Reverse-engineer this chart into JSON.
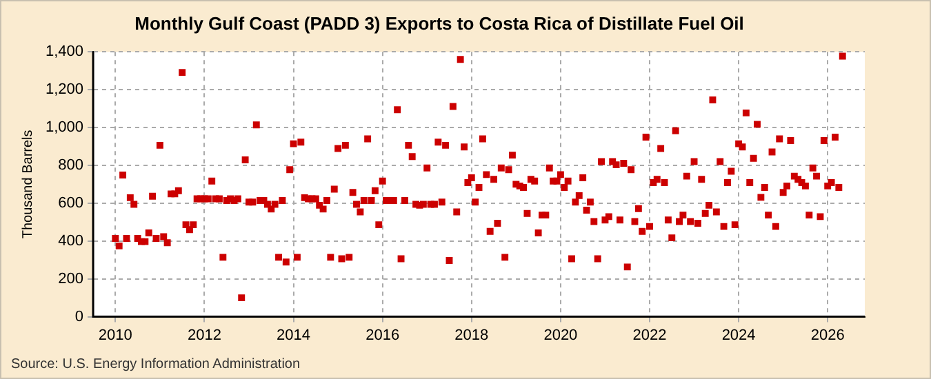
{
  "chart_data": {
    "type": "scatter",
    "title": "Monthly Gulf Coast (PADD 3) Exports to Costa Rica of Distillate Fuel Oil",
    "ylabel": "Thousand Barrels",
    "annotations": [
      "Source: U.S. Energy Information Administration"
    ],
    "x": [
      "2010-01",
      "2010-02",
      "2010-03",
      "2010-04",
      "2010-05",
      "2010-06",
      "2010-07",
      "2010-08",
      "2010-09",
      "2010-10",
      "2010-11",
      "2010-12",
      "2011-01",
      "2011-02",
      "2011-03",
      "2011-04",
      "2011-05",
      "2011-06",
      "2011-07",
      "2011-08",
      "2011-09",
      "2011-10",
      "2011-11",
      "2011-12",
      "2012-01",
      "2012-02",
      "2012-03",
      "2012-04",
      "2012-05",
      "2012-06",
      "2012-07",
      "2012-08",
      "2012-09",
      "2012-10",
      "2012-11",
      "2012-12",
      "2013-01",
      "2013-02",
      "2013-03",
      "2013-04",
      "2013-05",
      "2013-06",
      "2013-07",
      "2013-08",
      "2013-09",
      "2013-10",
      "2013-11",
      "2013-12",
      "2014-01",
      "2014-02",
      "2014-03",
      "2014-04",
      "2014-05",
      "2014-06",
      "2014-07",
      "2014-08",
      "2014-09",
      "2014-10",
      "2014-11",
      "2014-12",
      "2015-01",
      "2015-02",
      "2015-03",
      "2015-04",
      "2015-05",
      "2015-06",
      "2015-07",
      "2015-08",
      "2015-09",
      "2015-10",
      "2015-11",
      "2015-12",
      "2016-01",
      "2016-02",
      "2016-03",
      "2016-04",
      "2016-05",
      "2016-06",
      "2016-07",
      "2016-08",
      "2016-09",
      "2016-10",
      "2016-11",
      "2016-12",
      "2017-01",
      "2017-02",
      "2017-03",
      "2017-04",
      "2017-05",
      "2017-06",
      "2017-07",
      "2017-08",
      "2017-09",
      "2017-10",
      "2017-11",
      "2017-12",
      "2018-01",
      "2018-02",
      "2018-03",
      "2018-04",
      "2018-05",
      "2018-06",
      "2018-07",
      "2018-08",
      "2018-09",
      "2018-10",
      "2018-11",
      "2018-12",
      "2019-01",
      "2019-02",
      "2019-03",
      "2019-04",
      "2019-05",
      "2019-06",
      "2019-07",
      "2019-08",
      "2019-09",
      "2019-10",
      "2019-11",
      "2019-12",
      "2020-01",
      "2020-02",
      "2020-03",
      "2020-04",
      "2020-05",
      "2020-06",
      "2020-07",
      "2020-08",
      "2020-09",
      "2020-10",
      "2020-11",
      "2020-12",
      "2021-01",
      "2021-02",
      "2021-03",
      "2021-04",
      "2021-05",
      "2021-06",
      "2021-07",
      "2021-08",
      "2021-09",
      "2021-10",
      "2021-11",
      "2021-12",
      "2022-01",
      "2022-02",
      "2022-03",
      "2022-04",
      "2022-05",
      "2022-06",
      "2022-07",
      "2022-08",
      "2022-09",
      "2022-10",
      "2022-11",
      "2022-12",
      "2023-01",
      "2023-02",
      "2023-03",
      "2023-04",
      "2023-05",
      "2023-06",
      "2023-07",
      "2023-08",
      "2023-09",
      "2023-10",
      "2023-11",
      "2023-12",
      "2024-01",
      "2024-02",
      "2024-03",
      "2024-04",
      "2024-05",
      "2024-06",
      "2024-07",
      "2024-08",
      "2024-09",
      "2024-10",
      "2024-11",
      "2024-12",
      "2025-01",
      "2025-02",
      "2025-03",
      "2025-04",
      "2025-05",
      "2025-06",
      "2025-07",
      "2025-08",
      "2025-09",
      "2025-10",
      "2025-11",
      "2025-12",
      "2026-01",
      "2026-02",
      "2026-03",
      "2026-04",
      "2026-05"
    ],
    "series": [
      {
        "color": "#cc0000",
        "values": [
          414,
          374,
          749,
          414,
          629,
          594,
          414,
          397,
          397,
          443,
          637,
          414,
          906,
          423,
          391,
          649,
          649,
          666,
          1291,
          486,
          460,
          486,
          623,
          623,
          623,
          623,
          717,
          623,
          623,
          314,
          614,
          623,
          614,
          623,
          100,
          829,
          606,
          606,
          1014,
          614,
          614,
          594,
          569,
          594,
          314,
          614,
          289,
          777,
          914,
          314,
          923,
          629,
          623,
          623,
          623,
          589,
          569,
          614,
          314,
          674,
          889,
          306,
          906,
          314,
          657,
          594,
          554,
          614,
          940,
          614,
          666,
          486,
          717,
          614,
          614,
          614,
          1094,
          306,
          614,
          906,
          846,
          594,
          589,
          594,
          786,
          594,
          594,
          923,
          606,
          906,
          297,
          1111,
          554,
          1360,
          897,
          709,
          734,
          606,
          683,
          940,
          751,
          451,
          726,
          494,
          786,
          314,
          777,
          854,
          700,
          691,
          683,
          546,
          726,
          717,
          443,
          537,
          537,
          786,
          717,
          717,
          751,
          683,
          717,
          306,
          606,
          640,
          734,
          563,
          606,
          503,
          306,
          820,
          511,
          529,
          820,
          803,
          511,
          811,
          263,
          777,
          503,
          571,
          451,
          949,
          477,
          709,
          726,
          889,
          709,
          511,
          417,
          983,
          503,
          537,
          743,
          503,
          820,
          494,
          726,
          546,
          589,
          1146,
          554,
          820,
          477,
          709,
          769,
          486,
          914,
          897,
          1077,
          709,
          837,
          1017,
          631,
          683,
          537,
          871,
          477,
          940,
          657,
          691,
          931,
          743,
          726,
          709,
          691,
          537,
          786,
          743,
          529,
          931,
          691,
          709,
          949,
          683,
          1377
        ]
      }
    ],
    "xlim": [
      "2009-07",
      "2026-11"
    ],
    "xticks": [
      "2010",
      "2012",
      "2014",
      "2016",
      "2018",
      "2020",
      "2022",
      "2024",
      "2026"
    ],
    "ylim": [
      0,
      1400
    ],
    "yticks": [
      0,
      200,
      400,
      600,
      800,
      {
        "value": 1000,
        "label": "1,000"
      },
      {
        "value": 1200,
        "label": "1,200"
      },
      {
        "value": 1400,
        "label": "1,400"
      }
    ],
    "grid": true,
    "legend": false,
    "marker": "square"
  }
}
